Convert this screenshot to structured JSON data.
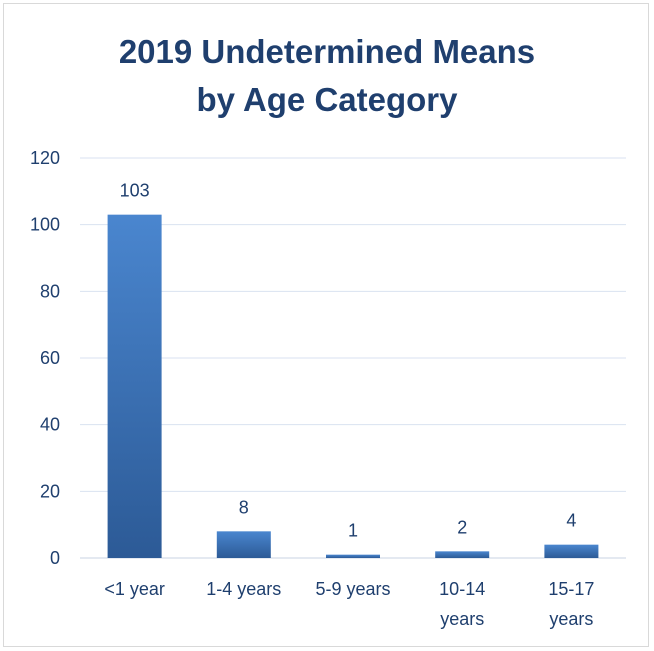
{
  "chart_data": {
    "type": "bar",
    "title_lines": [
      "2019 Undetermined Means",
      "by Age Category"
    ],
    "categories": [
      [
        "<1 year"
      ],
      [
        "1-4 years"
      ],
      [
        "5-9 years"
      ],
      [
        "10-14",
        "years"
      ],
      [
        "15-17",
        "years"
      ]
    ],
    "values": [
      103,
      8,
      1,
      2,
      4
    ],
    "data_labels": [
      "103",
      "8",
      "1",
      "2",
      "4"
    ],
    "yticks": [
      0,
      20,
      40,
      60,
      80,
      100,
      120
    ],
    "ylim": [
      0,
      120
    ],
    "grid": true,
    "colors": {
      "bar_top": "#4a86cf",
      "bar_bottom": "#2c5a96",
      "grid": "#d9e2f0",
      "text": "#1f3f6e"
    }
  }
}
